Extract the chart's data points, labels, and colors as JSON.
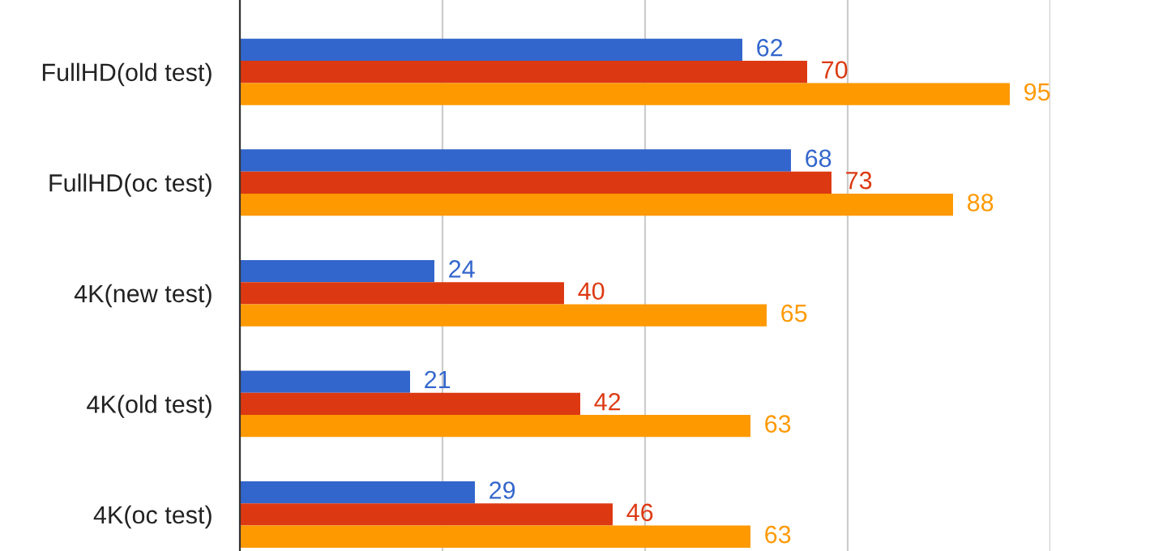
{
  "chart_data": {
    "type": "bar",
    "orientation": "horizontal",
    "categories": [
      "FullHD(old test)",
      "FullHD(oc test)",
      "4K(new test)",
      "4K(old test)",
      "4K(oc test)"
    ],
    "series": [
      {
        "color": "#3366cc",
        "values": [
          62,
          68,
          24,
          21,
          29
        ]
      },
      {
        "color": "#dc3912",
        "values": [
          70,
          73,
          40,
          42,
          46
        ]
      },
      {
        "color": "#ff9900",
        "values": [
          95,
          88,
          65,
          63,
          63
        ]
      }
    ],
    "xlim": [
      0,
      100
    ],
    "xticks": [
      {
        "value": 0,
        "label": null
      },
      {
        "value": 25,
        "label": null
      },
      {
        "value": 50,
        "label": null
      },
      {
        "value": 75,
        "label": null
      },
      {
        "value": 100,
        "label": null
      }
    ],
    "tick_labels": "y",
    "grid": "x",
    "data_labels": true
  }
}
